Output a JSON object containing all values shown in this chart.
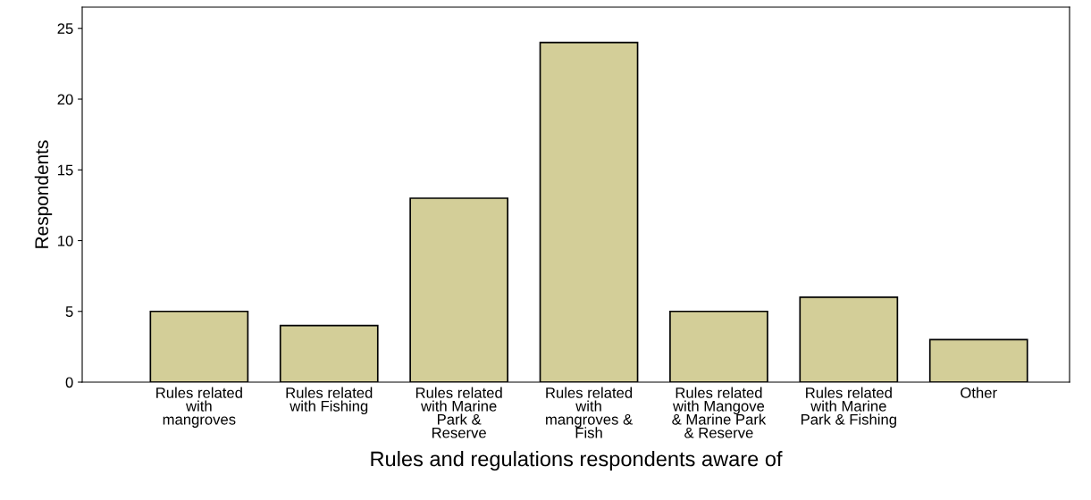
{
  "chart_data": {
    "type": "bar",
    "xlabel": "Rules and regulations respondents aware of",
    "ylabel": "Respondents",
    "categories": [
      "Rules related\nwith\nmangroves",
      "Rules related\nwith Fishing",
      "Rules related\nwith Marine\nPark &\nReserve",
      "Rules related\nwith\nmangroves &\nFish",
      "Rules related\nwith Mangove\n& Marine Park\n& Reserve",
      "Rules related\nwith Marine\nPark & Fishing",
      "Other"
    ],
    "values": [
      5,
      4,
      13,
      24,
      5,
      6,
      3
    ],
    "color": "#d3ce98",
    "ylim": [
      0,
      26.5
    ],
    "yticks": [
      0,
      5,
      10,
      15,
      20,
      25
    ],
    "grid": false,
    "legend": false
  }
}
